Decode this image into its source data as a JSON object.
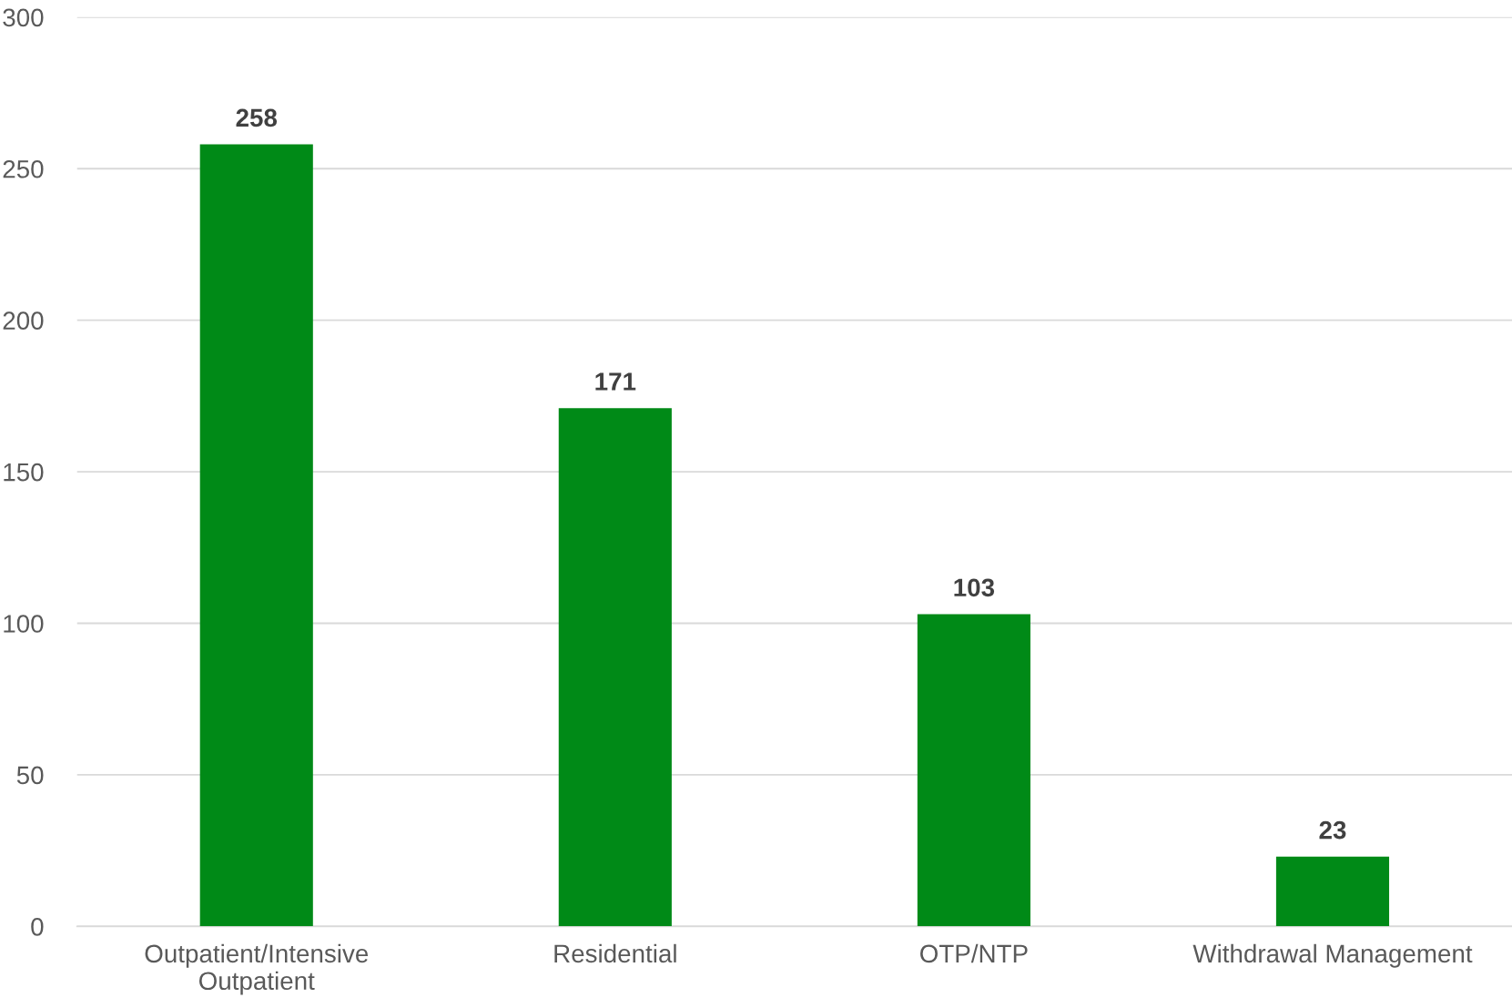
{
  "chart_data": {
    "type": "bar",
    "categories": [
      "Outpatient/Intensive\nOutpatient",
      "Residential",
      "OTP/NTP",
      "Withdrawal Management"
    ],
    "values": [
      258,
      171,
      103,
      23
    ],
    "color": "#008a17",
    "ylim": [
      0,
      300
    ],
    "yticks": [
      0,
      50,
      100,
      150,
      200,
      250,
      300
    ],
    "grid": "y",
    "data_labels": true,
    "legend": false
  }
}
